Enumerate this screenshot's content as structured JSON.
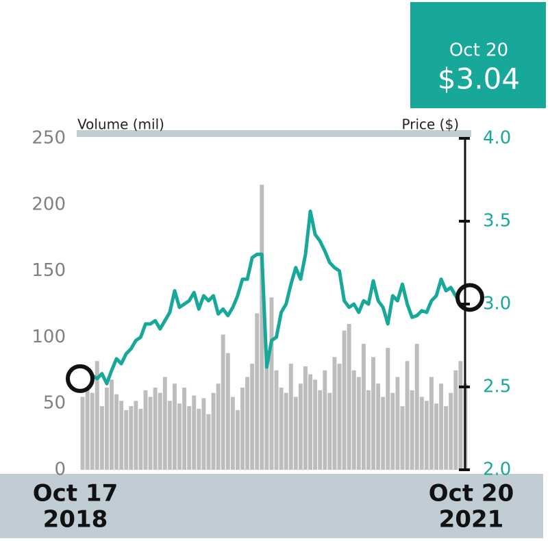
{
  "chart_data": {
    "type": "bar",
    "annotation": {
      "date": "Oct 20",
      "price": "$3.04"
    },
    "y_label": "Volume (mil)",
    "y2_label": "Price ($)",
    "categories": [
      {
        "date": "Oct 17",
        "year": "2018"
      },
      null,
      null,
      null,
      null,
      null,
      null,
      null,
      null,
      null,
      null,
      null,
      null,
      null,
      null,
      null,
      null,
      null,
      null,
      null,
      null,
      null,
      null,
      null,
      null,
      null,
      null,
      null,
      null,
      null,
      null,
      null,
      null,
      null,
      null,
      null,
      null,
      null,
      null,
      null,
      null,
      null,
      null,
      null,
      null,
      null,
      null,
      null,
      null,
      null,
      null,
      null,
      null,
      null,
      null,
      null,
      null,
      null,
      null,
      null,
      null,
      null,
      null,
      null,
      null,
      null,
      null,
      null,
      null,
      null,
      null,
      null,
      null,
      null,
      null,
      null,
      null,
      null,
      null,
      {
        "date": "Oct 20",
        "year": "2021"
      }
    ],
    "series": [
      {
        "type": "bar",
        "color": "#bdbdbd",
        "values": [
          55,
          72,
          58,
          82,
          48,
          62,
          68,
          57,
          52,
          45,
          48,
          52,
          46,
          60,
          55,
          62,
          58,
          70,
          52,
          65,
          50,
          62,
          48,
          56,
          46,
          54,
          42,
          58,
          65,
          102,
          88,
          55,
          45,
          62,
          70,
          80,
          118,
          215,
          90,
          130,
          75,
          62,
          58,
          80,
          55,
          65,
          78,
          72,
          68,
          60,
          75,
          58,
          85,
          80,
          105,
          110,
          75,
          70,
          95,
          60,
          85,
          65,
          55,
          92,
          58,
          70,
          48,
          82,
          60,
          95,
          55,
          52,
          70,
          50,
          65,
          48,
          58,
          75,
          82,
          65
        ]
      },
      {
        "type": "line",
        "axis": "y2",
        "color": "#17a89a",
        "values": [
          2.55,
          2.53,
          2.57,
          2.55,
          2.58,
          2.52,
          2.6,
          2.67,
          2.64,
          2.7,
          2.73,
          2.78,
          2.8,
          2.88,
          2.88,
          2.9,
          2.85,
          2.9,
          2.95,
          3.08,
          2.98,
          3.0,
          3.02,
          3.07,
          2.97,
          3.05,
          3.02,
          3.05,
          2.94,
          2.97,
          2.93,
          2.98,
          3.05,
          3.15,
          3.15,
          3.28,
          3.3,
          3.3,
          2.62,
          2.78,
          2.8,
          2.95,
          3.0,
          3.12,
          3.22,
          3.15,
          3.3,
          3.56,
          3.42,
          3.38,
          3.32,
          3.25,
          3.22,
          3.2,
          3.02,
          2.98,
          3.0,
          2.95,
          3.02,
          3.0,
          3.14,
          3.02,
          2.98,
          2.88,
          3.05,
          3.02,
          3.12,
          3.0,
          2.92,
          2.93,
          2.96,
          2.95,
          3.02,
          3.05,
          3.15,
          3.08,
          3.1,
          3.05,
          3.0,
          3.04
        ]
      }
    ],
    "ylim": [
      0,
      250
    ],
    "yticks": [
      0,
      50,
      100,
      150,
      200,
      250
    ],
    "y2lim": [
      2.0,
      4.0
    ],
    "y2ticks": [
      {
        "value": 2,
        "label": "2.0"
      },
      2.5,
      {
        "value": 3,
        "label": "3.0"
      },
      3.5,
      {
        "value": 4,
        "label": "4.0"
      }
    ]
  }
}
